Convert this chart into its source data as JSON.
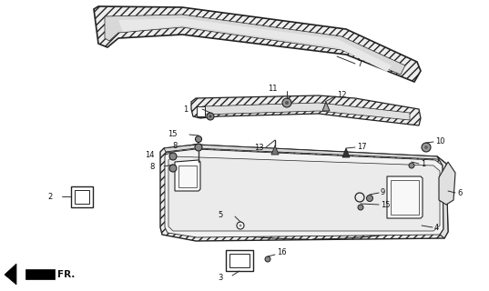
{
  "bg_color": "#ffffff",
  "lc": "#222222",
  "tc": "#111111",
  "figsize": [
    5.37,
    3.2
  ],
  "dpi": 100,
  "xlim": [
    0,
    537
  ],
  "ylim": [
    0,
    320
  ]
}
